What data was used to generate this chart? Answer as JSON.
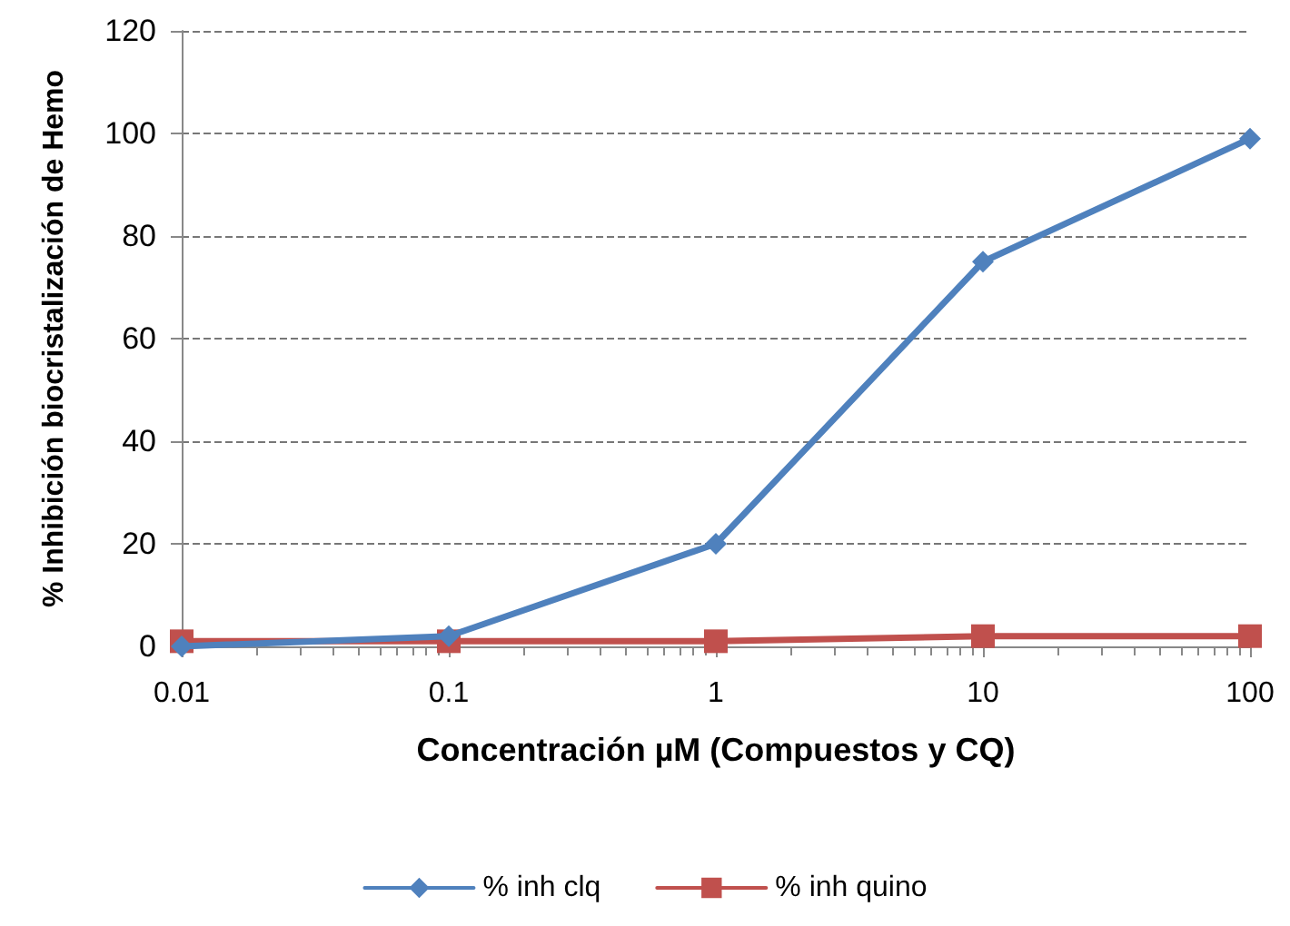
{
  "chart_data": {
    "type": "line",
    "xlabel": "Concentración µM (Compuestos y CQ)",
    "ylabel": "% Inhibición biocristalización de Hemo",
    "x": [
      0.01,
      0.1,
      1,
      10,
      100
    ],
    "series": [
      {
        "name": "% inh clq",
        "color": "#4f81bd",
        "marker": "diamond",
        "values": [
          0,
          2,
          20,
          75,
          99
        ]
      },
      {
        "name": "% inh quino",
        "color": "#c0504d",
        "marker": "square",
        "values": [
          1,
          1,
          1,
          2,
          2
        ]
      }
    ],
    "log": "x",
    "xlim": [
      0.01,
      100
    ],
    "xticks": [
      0.01,
      0.1,
      1,
      10,
      100
    ],
    "ylim": [
      0,
      120
    ],
    "yticks": [
      0,
      20,
      40,
      60,
      80,
      100,
      120
    ],
    "grid": "y",
    "legend": "bottom",
    "line_style": "solid"
  }
}
